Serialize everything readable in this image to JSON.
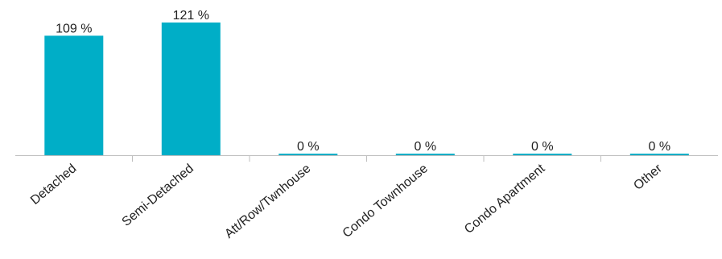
{
  "chart_data": {
    "type": "bar",
    "categories": [
      "Detached",
      "Semi-Detached",
      "Att/Row/Twnhouse",
      "Condo Townhouse",
      "Condo Apartment",
      "Other"
    ],
    "values": [
      109,
      121,
      0,
      0,
      0,
      0
    ],
    "data_labels": [
      "109 %",
      "121 %",
      "0 %",
      "0 %",
      "0 %",
      "0 %"
    ],
    "unit": "%",
    "ylim": [
      0,
      121
    ],
    "grid": false,
    "legend": "none",
    "bar_color": "#00AEC7",
    "axis_color": "#BFBFBF",
    "text_color": "#222222"
  }
}
